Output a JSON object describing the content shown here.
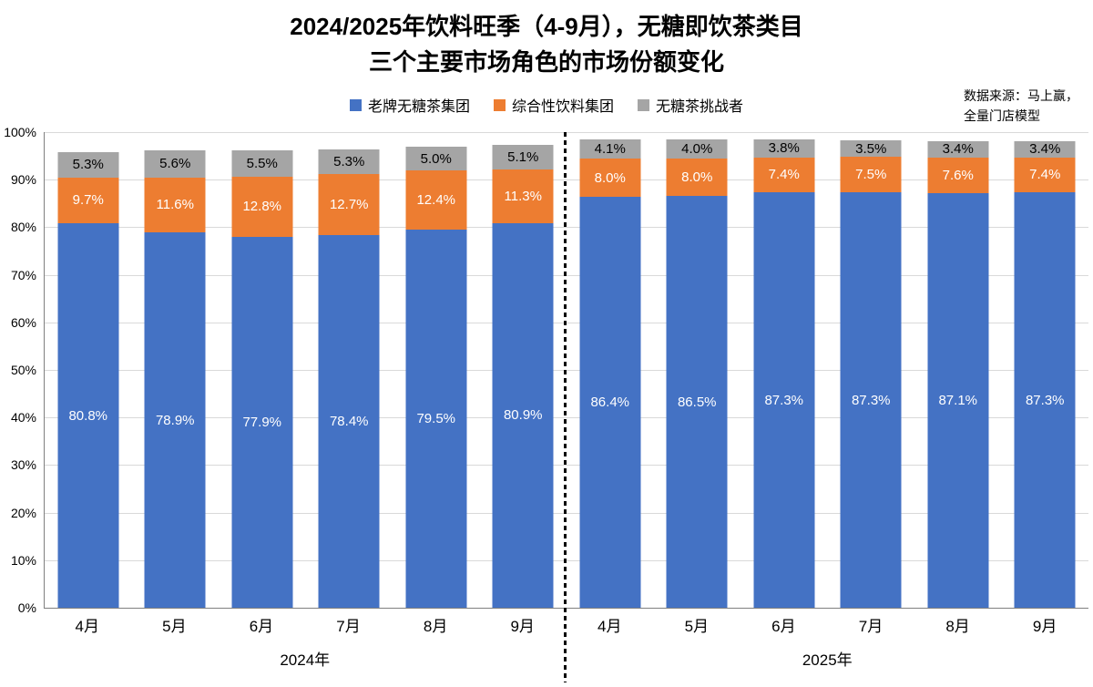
{
  "title": {
    "line1": "2024/2025年饮料旺季（4-9月），无糖即饮茶类目",
    "line2": "三个主要市场角色的市场份额变化"
  },
  "source": {
    "line1": "数据来源：马上赢，",
    "line2": "全量门店模型"
  },
  "legend": [
    {
      "label": "老牌无糖茶集团",
      "color": "#4472C4"
    },
    {
      "label": "综合性饮料集团",
      "color": "#ED7D31"
    },
    {
      "label": "无糖茶挑战者",
      "color": "#A5A5A5"
    }
  ],
  "chart_data": {
    "type": "bar",
    "stacked": true,
    "categories": [
      "4月",
      "5月",
      "6月",
      "7月",
      "8月",
      "9月",
      "4月",
      "5月",
      "6月",
      "7月",
      "8月",
      "9月"
    ],
    "group_labels": [
      "2024年",
      "2025年"
    ],
    "series": [
      {
        "name": "老牌无糖茶集团",
        "color": "#4472C4",
        "label_color": "#ffffff",
        "values": [
          80.8,
          78.9,
          77.9,
          78.4,
          79.5,
          80.9,
          86.4,
          86.5,
          87.3,
          87.3,
          87.1,
          87.3
        ]
      },
      {
        "name": "综合性饮料集团",
        "color": "#ED7D31",
        "label_color": "#ffffff",
        "values": [
          9.7,
          11.6,
          12.8,
          12.7,
          12.4,
          11.3,
          8.0,
          8.0,
          7.4,
          7.5,
          7.6,
          7.4
        ]
      },
      {
        "name": "无糖茶挑战者",
        "color": "#A5A5A5",
        "label_color": "#000000",
        "values": [
          5.3,
          5.6,
          5.5,
          5.3,
          5.0,
          5.1,
          4.1,
          4.0,
          3.8,
          3.5,
          3.4,
          3.4
        ]
      }
    ],
    "ylim": [
      0,
      100
    ],
    "ytick_step": 10,
    "yaxis_format": "percent",
    "grid": true,
    "legend_position": "top"
  }
}
